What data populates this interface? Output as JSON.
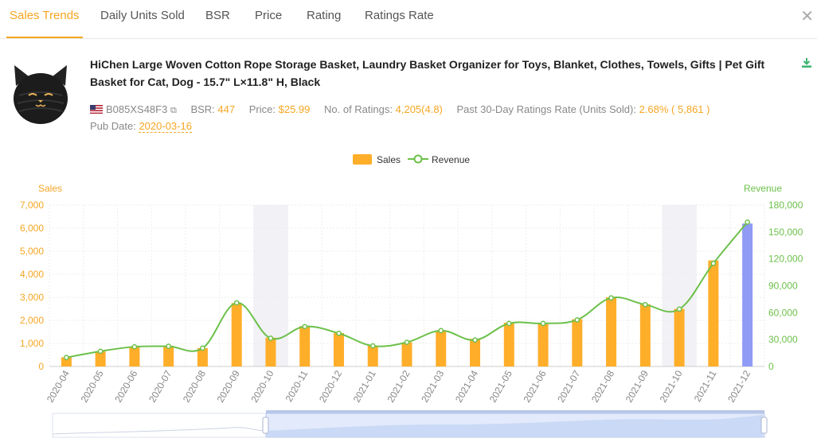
{
  "tabs": [
    "Sales Trends",
    "Daily Units Sold",
    "BSR",
    "Price",
    "Rating",
    "Ratings Rate"
  ],
  "active_tab": "Sales Trends",
  "product": {
    "title": "HiChen Large Woven Cotton Rope Storage Basket, Laundry Basket Organizer for Toys, Blanket, Clothes, Towels, Gifts | Pet Gift Basket for Cat, Dog - 15.7\" L×11.8\" H, Black",
    "asin": "B085XS48F3",
    "bsr_label": "BSR:",
    "bsr": "447",
    "price_label": "Price:",
    "price": "$25.99",
    "ratings_label": "No. of Ratings:",
    "ratings": "4,205(4.8)",
    "rate_label": "Past 30-Day Ratings Rate (Units Sold):",
    "rate": "2.68% ( 5,861 )",
    "pub_label": "Pub Date:",
    "pub_date": "2020-03-16"
  },
  "colors": {
    "accent": "#f5a623",
    "bar": "#ffae2a",
    "bar_highlight": "#8f9bf5",
    "line": "#6cc04a",
    "shade": "#f1f1f6"
  },
  "chart_data": {
    "type": "bar",
    "legend": [
      "Sales",
      "Revenue"
    ],
    "legend_position": "top-center",
    "left_axis_label": "Sales",
    "right_axis_label": "Revenue",
    "categories": [
      "2020-04",
      "2020-05",
      "2020-06",
      "2020-07",
      "2020-08",
      "2020-09",
      "2020-10",
      "2020-11",
      "2020-12",
      "2021-01",
      "2021-02",
      "2021-03",
      "2021-04",
      "2021-05",
      "2021-06",
      "2021-07",
      "2021-08",
      "2021-09",
      "2021-10",
      "2021-11",
      "2021-12"
    ],
    "series": [
      {
        "name": "Sales",
        "axis": "left",
        "type": "bar",
        "values": [
          400,
          650,
          850,
          900,
          800,
          2750,
          1250,
          1750,
          1450,
          900,
          1050,
          1550,
          1200,
          1900,
          1900,
          2050,
          3000,
          2700,
          2500,
          4600,
          6200
        ]
      },
      {
        "name": "Revenue",
        "axis": "right",
        "type": "line",
        "values": [
          10000,
          17000,
          22000,
          22500,
          20500,
          71000,
          31500,
          44500,
          37000,
          23000,
          27000,
          40000,
          29500,
          48000,
          48000,
          52000,
          76500,
          69000,
          64000,
          115000,
          161000
        ]
      }
    ],
    "left_ylim": [
      0,
      7000
    ],
    "left_ticks": [
      "0",
      "1,000",
      "2,000",
      "3,000",
      "4,000",
      "5,000",
      "6,000",
      "7,000"
    ],
    "right_ylim": [
      0,
      180000
    ],
    "right_ticks": [
      "0",
      "30,000",
      "60,000",
      "90,000",
      "120,000",
      "150,000",
      "180,000"
    ],
    "shaded_categories": [
      "2020-10",
      "2021-10"
    ],
    "highlighted_bar": "2021-12",
    "grid": true
  }
}
